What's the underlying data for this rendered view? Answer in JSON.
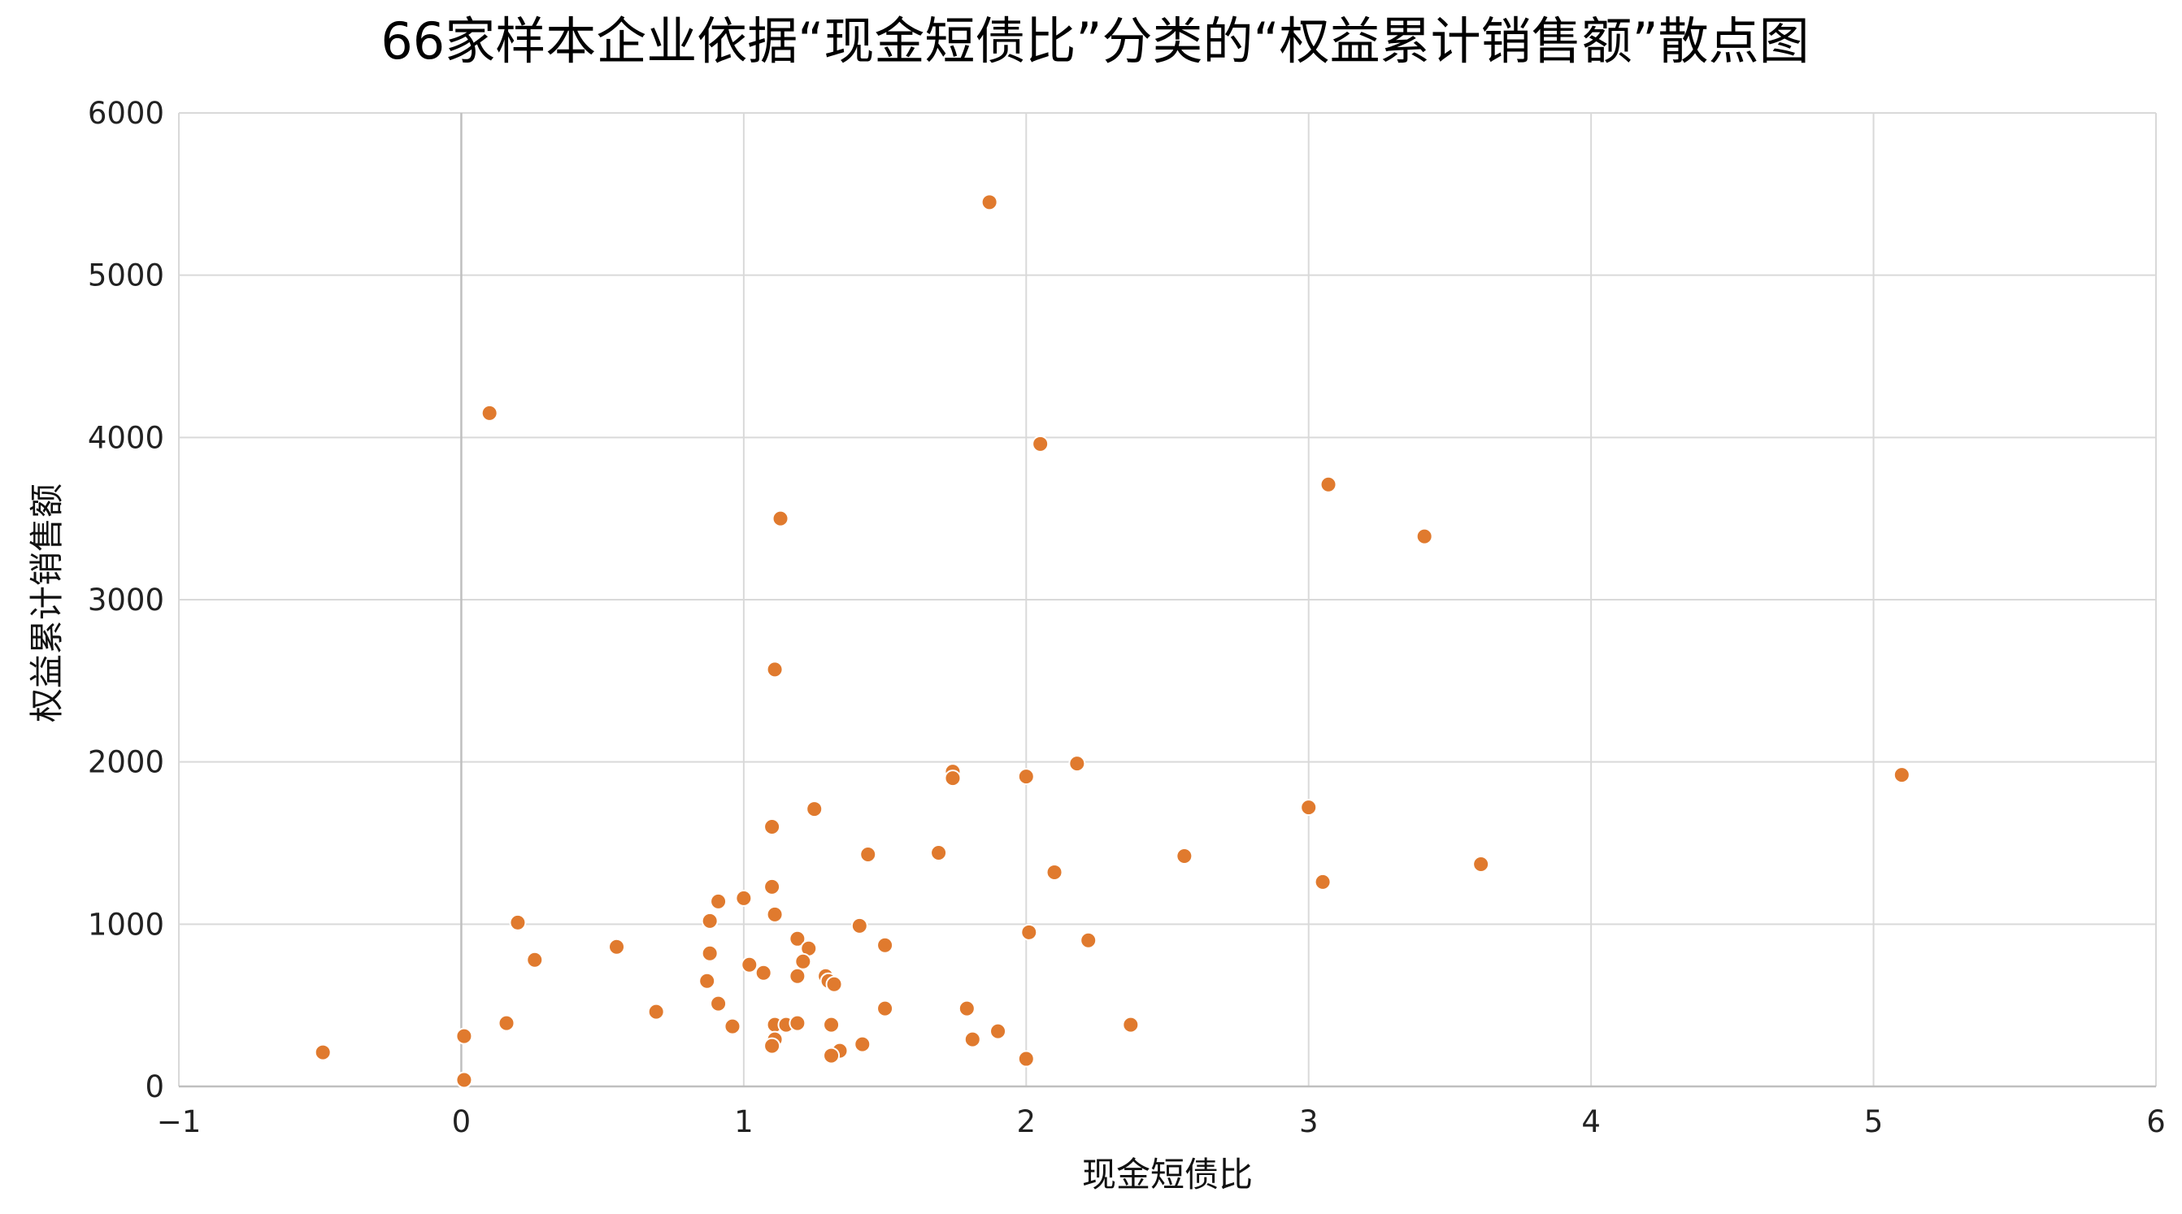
{
  "chart_data": {
    "type": "scatter",
    "title": "66家样本企业依据“现金短债比”分类的“权益累计销售额”散点图",
    "xlabel": "现金短债比",
    "ylabel": "权益累计销售额",
    "xlim": [
      -1,
      6
    ],
    "ylim": [
      0,
      6000
    ],
    "xticks": [
      -1,
      0,
      1,
      2,
      3,
      4,
      5,
      6
    ],
    "xtick_labels": [
      "−1",
      "0",
      "1",
      "2",
      "3",
      "4",
      "5",
      "6"
    ],
    "yticks": [
      0,
      1000,
      2000,
      3000,
      4000,
      5000,
      6000
    ],
    "ytick_labels": [
      "0",
      "1000",
      "2000",
      "3000",
      "4000",
      "5000",
      "6000"
    ],
    "grid": true,
    "legend": "none",
    "marker_color": "#E07A2E",
    "marker_edge_color": "#ffffff",
    "grid_color": "#D9D9D9",
    "axis_color": "#BFBFBF",
    "series": [
      {
        "points": [
          [
            1.87,
            5450
          ],
          [
            0.1,
            4150
          ],
          [
            2.05,
            3960
          ],
          [
            1.13,
            3500
          ],
          [
            3.07,
            3710
          ],
          [
            3.41,
            3390
          ],
          [
            1.11,
            2570
          ],
          [
            1.74,
            1940
          ],
          [
            1.74,
            1900
          ],
          [
            2.0,
            1910
          ],
          [
            2.18,
            1990
          ],
          [
            5.1,
            1920
          ],
          [
            1.25,
            1710
          ],
          [
            3.0,
            1720
          ],
          [
            1.1,
            1600
          ],
          [
            1.44,
            1430
          ],
          [
            1.69,
            1440
          ],
          [
            2.56,
            1420
          ],
          [
            2.1,
            1320
          ],
          [
            3.05,
            1260
          ],
          [
            3.61,
            1370
          ],
          [
            1.1,
            1230
          ],
          [
            1.0,
            1160
          ],
          [
            0.91,
            1140
          ],
          [
            1.11,
            1060
          ],
          [
            0.88,
            1020
          ],
          [
            0.2,
            1010
          ],
          [
            1.41,
            990
          ],
          [
            2.01,
            950
          ],
          [
            1.19,
            910
          ],
          [
            2.22,
            900
          ],
          [
            0.55,
            860
          ],
          [
            1.23,
            850
          ],
          [
            1.5,
            870
          ],
          [
            0.88,
            820
          ],
          [
            0.26,
            780
          ],
          [
            1.21,
            770
          ],
          [
            1.02,
            750
          ],
          [
            1.07,
            700
          ],
          [
            1.29,
            680
          ],
          [
            1.19,
            680
          ],
          [
            1.3,
            650
          ],
          [
            1.32,
            630
          ],
          [
            0.87,
            650
          ],
          [
            0.91,
            510
          ],
          [
            0.69,
            460
          ],
          [
            1.5,
            480
          ],
          [
            1.79,
            480
          ],
          [
            0.16,
            390
          ],
          [
            0.96,
            370
          ],
          [
            1.11,
            380
          ],
          [
            1.15,
            380
          ],
          [
            1.19,
            390
          ],
          [
            1.31,
            380
          ],
          [
            2.37,
            380
          ],
          [
            0.01,
            310
          ],
          [
            1.11,
            290
          ],
          [
            1.1,
            250
          ],
          [
            1.42,
            260
          ],
          [
            1.81,
            290
          ],
          [
            1.9,
            340
          ],
          [
            -0.49,
            210
          ],
          [
            1.34,
            220
          ],
          [
            1.31,
            190
          ],
          [
            2.0,
            170
          ],
          [
            0.01,
            40
          ]
        ]
      }
    ]
  }
}
